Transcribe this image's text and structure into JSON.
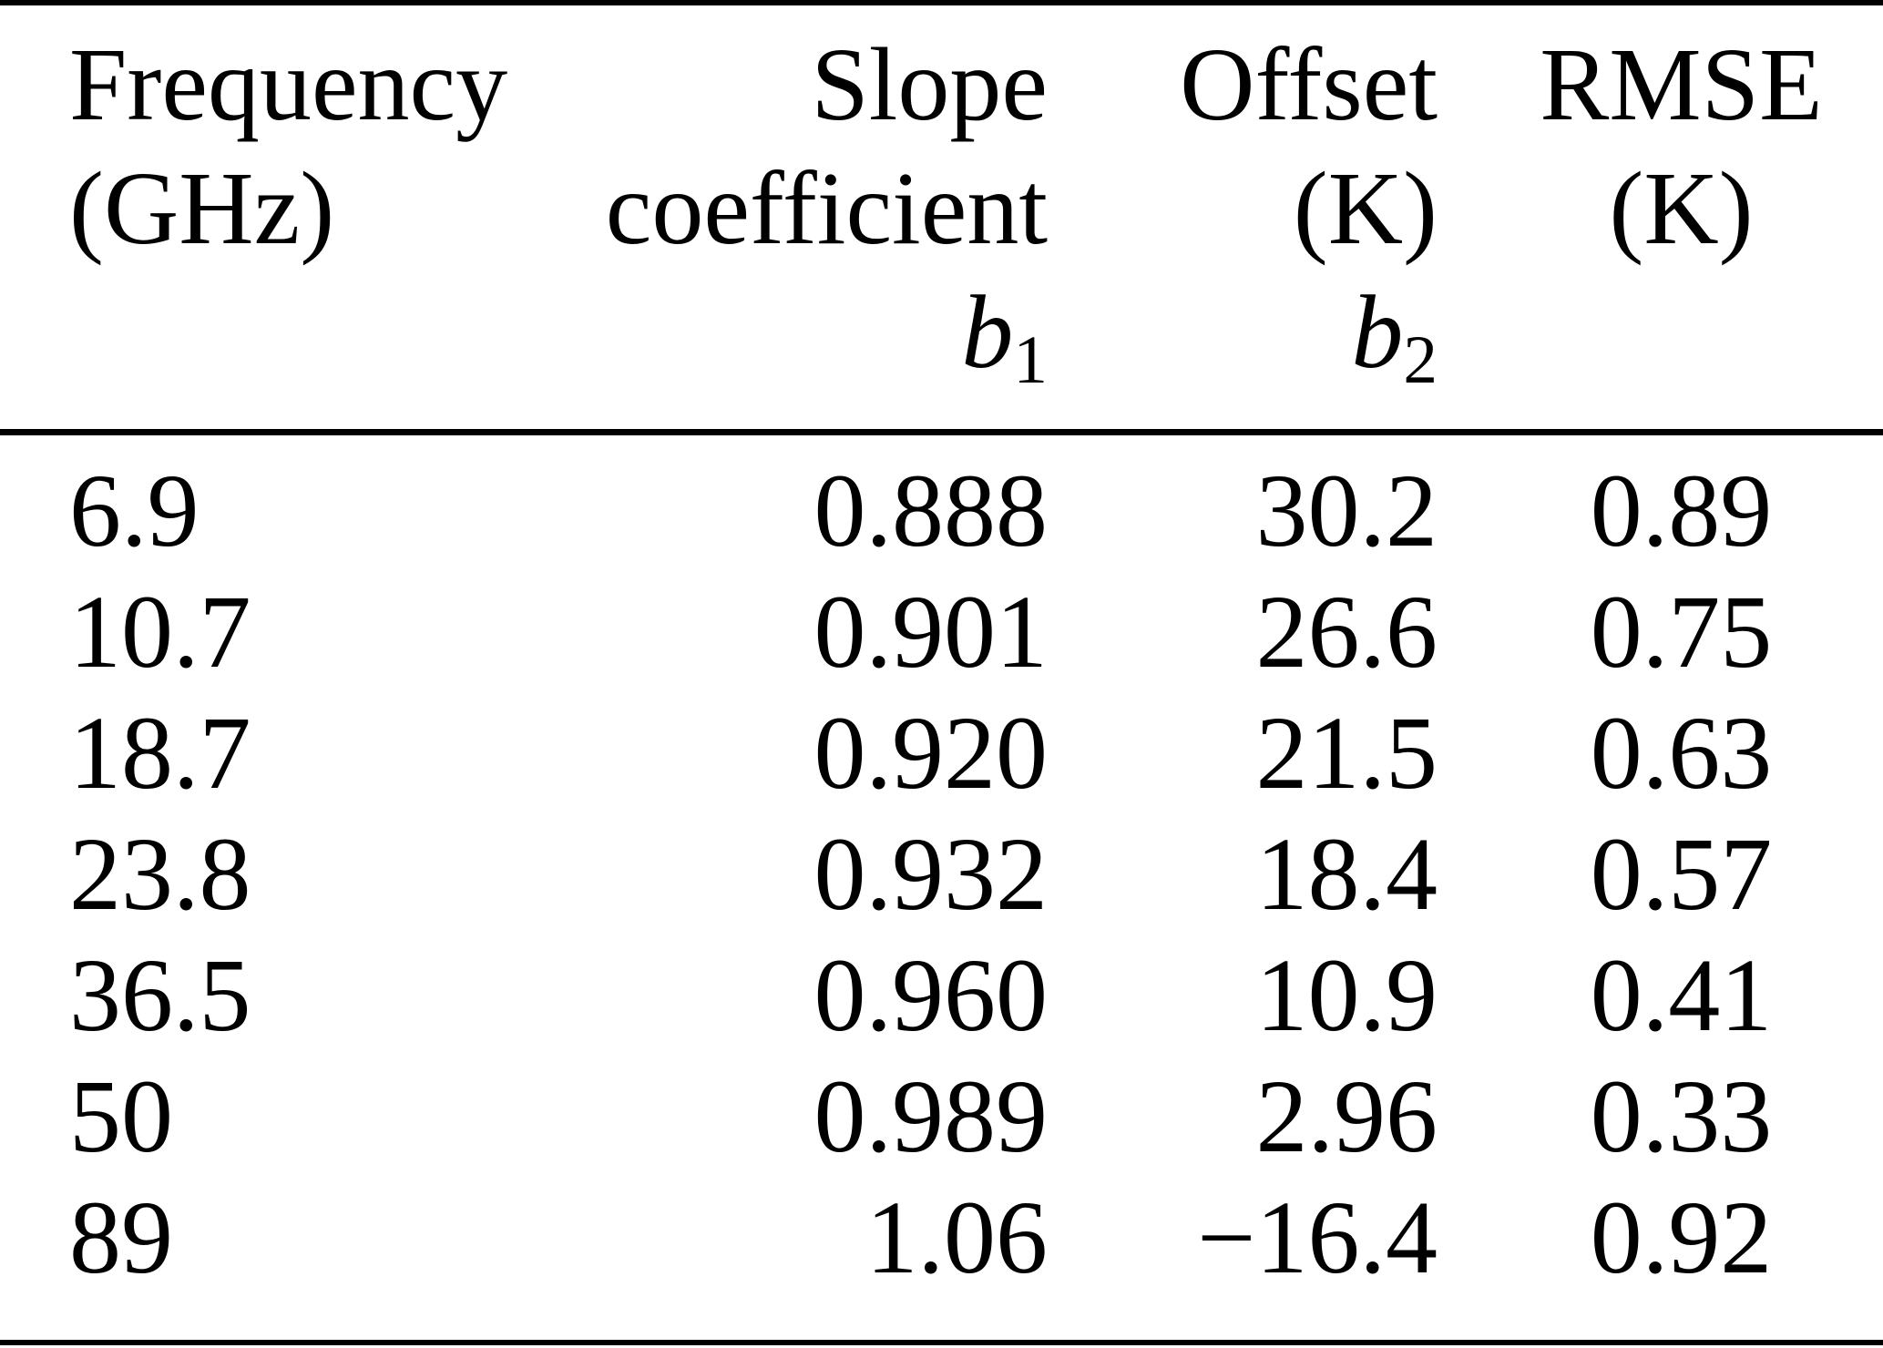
{
  "figure": {
    "kind": "scientific-paper-regression-table"
  },
  "table": {
    "headers": {
      "frequency": {
        "line1": "Frequency",
        "line2": "(GHz)"
      },
      "slope": {
        "line1": "Slope",
        "line2": "coefficient",
        "symbol_base": "b",
        "symbol_sub": "1"
      },
      "offset": {
        "line1": "Offset",
        "line2": "(K)",
        "symbol_base": "b",
        "symbol_sub": "2"
      },
      "rmse": {
        "line1": "RMSE",
        "line2": "(K)"
      }
    },
    "rows": [
      [
        "6.9",
        "0.888",
        "30.2",
        "0.89"
      ],
      [
        "10.7",
        "0.901",
        "26.6",
        "0.75"
      ],
      [
        "18.7",
        "0.920",
        "21.5",
        "0.63"
      ],
      [
        "23.8",
        "0.932",
        "18.4",
        "0.57"
      ],
      [
        "36.5",
        "0.960",
        "10.9",
        "0.41"
      ],
      [
        "50",
        "0.989",
        "2.96",
        "0.33"
      ],
      [
        "89",
        "1.06",
        "−16.4",
        "0.92"
      ]
    ]
  },
  "chart_data": {
    "type": "table",
    "title": "",
    "columns": [
      "Frequency (GHz)",
      "Slope coefficient b1",
      "Offset (K) b2",
      "RMSE (K)"
    ],
    "rows": [
      [
        6.9,
        0.888,
        30.2,
        0.89
      ],
      [
        10.7,
        0.901,
        26.6,
        0.75
      ],
      [
        18.7,
        0.92,
        21.5,
        0.63
      ],
      [
        23.8,
        0.932,
        18.4,
        0.57
      ],
      [
        36.5,
        0.96,
        10.9,
        0.41
      ],
      [
        50,
        0.989,
        2.96,
        0.33
      ],
      [
        89,
        1.06,
        -16.4,
        0.92
      ]
    ],
    "colors": {
      "text": "#000000",
      "rule": "#000000",
      "background": "#ffffff"
    }
  }
}
